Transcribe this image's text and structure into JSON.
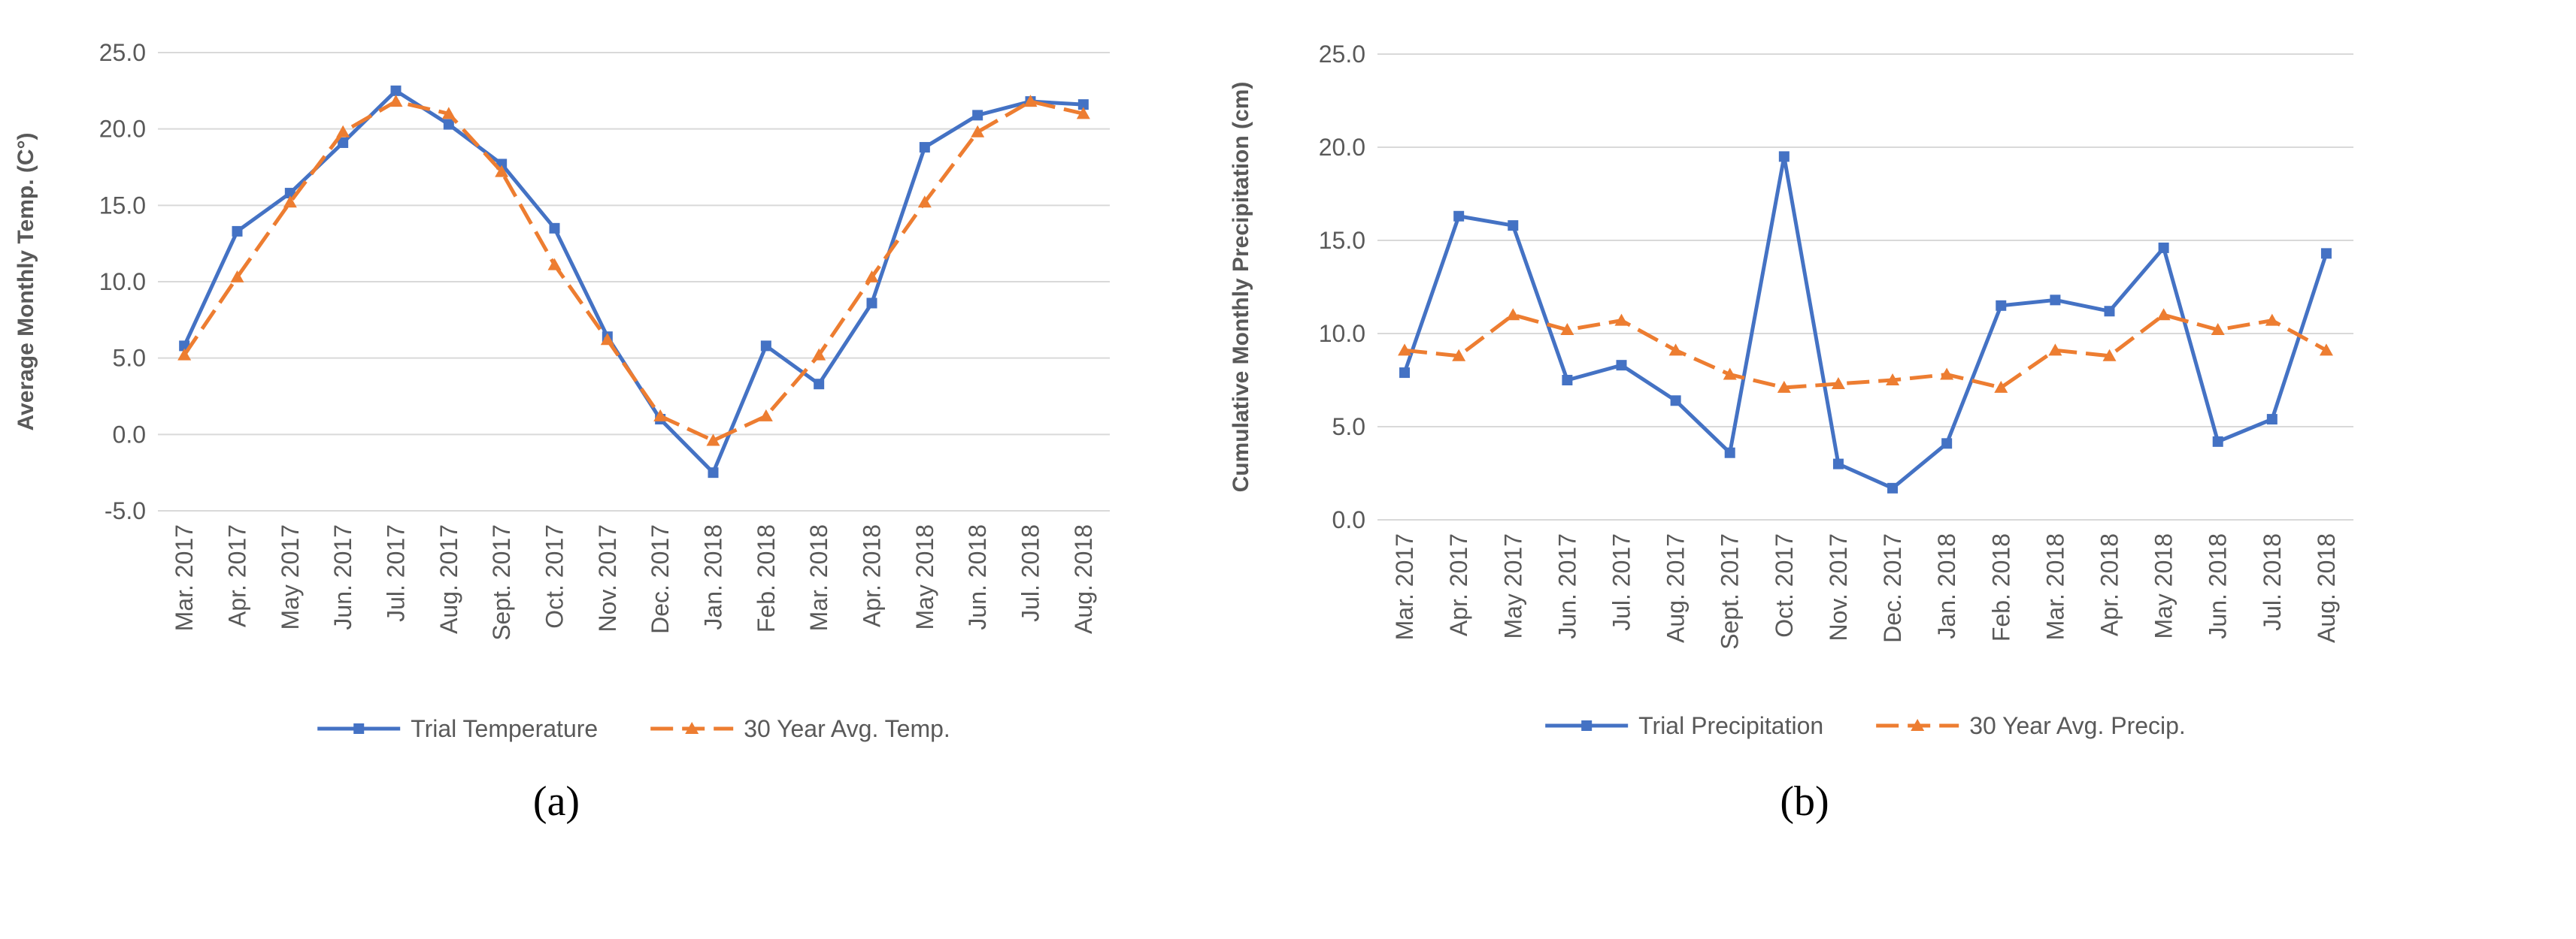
{
  "chart_data": [
    {
      "type": "line",
      "caption": "(a)",
      "y_label": "Average Monthly Temp. (C°)",
      "categories": [
        "Mar. 2017",
        "Apr. 2017",
        "May 2017",
        "Jun. 2017",
        "Jul. 2017",
        "Aug. 2017",
        "Sept. 2017",
        "Oct. 2017",
        "Nov. 2017",
        "Dec. 2017",
        "Jan. 2018",
        "Feb. 2018",
        "Mar. 2018",
        "Apr. 2018",
        "May 2018",
        "Jun. 2018",
        "Jul. 2018",
        "Aug. 2018"
      ],
      "series": [
        {
          "name": "Trial Temperature",
          "color": "#4472c4",
          "marker": "square",
          "dashed": false,
          "values": [
            5.8,
            13.3,
            15.8,
            19.1,
            22.5,
            20.3,
            17.7,
            13.5,
            6.4,
            1.0,
            -2.5,
            5.8,
            3.3,
            8.6,
            18.8,
            20.9,
            21.8,
            21.6
          ]
        },
        {
          "name": "30 Year Avg. Temp.",
          "color": "#ed7d31",
          "marker": "triangle",
          "dashed": true,
          "values": [
            5.2,
            10.3,
            15.2,
            19.8,
            21.8,
            21.0,
            17.2,
            11.1,
            6.2,
            1.2,
            -0.4,
            1.2,
            5.2,
            10.3,
            15.2,
            19.8,
            21.8,
            21.0
          ]
        }
      ],
      "ylim": [
        -5,
        25
      ],
      "yticks": [
        {
          "value": -5,
          "label": "-5.0"
        },
        {
          "value": 0,
          "label": "0.0"
        },
        {
          "value": 5,
          "label": "5.0"
        },
        {
          "value": 10,
          "label": "10.0"
        },
        {
          "value": 15,
          "label": "15.0"
        },
        {
          "value": 20,
          "label": "20.0"
        },
        {
          "value": 25,
          "label": "25.0"
        }
      ],
      "grid": true,
      "legend": "bottom"
    },
    {
      "type": "line",
      "caption": "(b)",
      "y_label": "Cumulative Monthly Precipitation (cm)",
      "categories": [
        "Mar. 2017",
        "Apr. 2017",
        "May 2017",
        "Jun. 2017",
        "Jul. 2017",
        "Aug. 2017",
        "Sept. 2017",
        "Oct. 2017",
        "Nov. 2017",
        "Dec. 2017",
        "Jan. 2018",
        "Feb. 2018",
        "Mar. 2018",
        "Apr. 2018",
        "May 2018",
        "Jun. 2018",
        "Jul. 2018",
        "Aug. 2018"
      ],
      "series": [
        {
          "name": "Trial Precipitation",
          "color": "#4472c4",
          "marker": "square",
          "dashed": false,
          "values": [
            7.9,
            16.3,
            15.8,
            7.5,
            8.3,
            6.4,
            3.6,
            19.5,
            3.0,
            1.7,
            4.1,
            11.5,
            11.8,
            11.2,
            14.6,
            4.2,
            5.4,
            14.3
          ]
        },
        {
          "name": "30 Year Avg. Precip.",
          "color": "#ed7d31",
          "marker": "triangle",
          "dashed": true,
          "values": [
            9.1,
            8.8,
            11.0,
            10.2,
            10.7,
            9.1,
            7.8,
            7.1,
            7.3,
            7.5,
            7.8,
            7.1,
            9.1,
            8.8,
            11.0,
            10.2,
            10.7,
            9.1
          ]
        }
      ],
      "ylim": [
        0,
        25
      ],
      "yticks": [
        {
          "value": 0,
          "label": "0.0"
        },
        {
          "value": 5,
          "label": "5.0"
        },
        {
          "value": 10,
          "label": "10.0"
        },
        {
          "value": 15,
          "label": "15.0"
        },
        {
          "value": 20,
          "label": "20.0"
        },
        {
          "value": 25,
          "label": "25.0"
        }
      ],
      "grid": true,
      "legend": "bottom"
    }
  ]
}
